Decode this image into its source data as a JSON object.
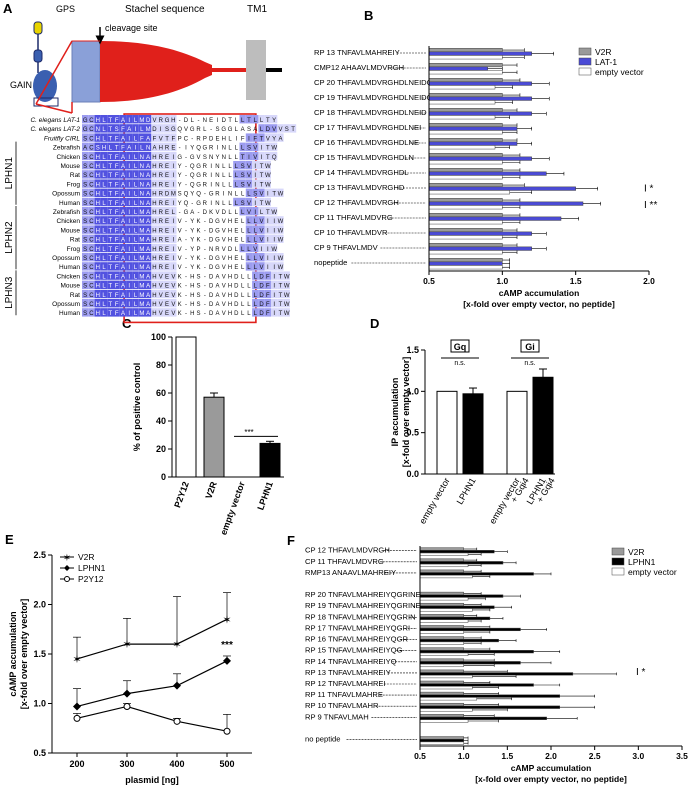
{
  "panels": {
    "A": "A",
    "B": "B",
    "C": "C",
    "D": "D",
    "E": "E",
    "F": "F"
  },
  "panelA": {
    "top_labels": [
      "GPS",
      "Stachel sequence",
      "TM1"
    ],
    "gain_label": "GAIN",
    "cleavage_label": "cleavage site",
    "species": [
      "C. elegans LAT-1",
      "C. elegans LAT-2",
      "Fruitfly CIRL",
      "Zebrafish",
      "Chicken",
      "Mouse",
      "Rat",
      "Frog",
      "Opossum",
      "Human",
      "Zebrafish",
      "Chicken",
      "Mouse",
      "Rat",
      "Frog",
      "Opossum",
      "Human",
      "Chicken",
      "Mouse",
      "Rat",
      "Opossum",
      "Human"
    ],
    "sequences": [
      "GCHLTFAILMDVRGH-DL-NEIDTLLTLLTY",
      "GCNLTSFAILMDISGQVGRL-SGGLASALDVVST",
      "SCHLTFAILFAFVTFPC-RPDEHLIFIFTVYA",
      "ACSHLTFAILNAHRE-IYQGRINLLLSVITW",
      "SCHLTFAILNAHREIG-GVSNYNLLTIVITQ",
      "SCHLTFAILNAHREIY-QGRINLLLSVITW",
      "SCHLTFAILNAHREIY-QGRINLLLSVITW",
      "SCHLTFAILNAHREIY-QGRINLLLSVITW",
      "SCHLTFAILNAHRDMSQYQ-GRINLLLSVITW",
      "SCHLTFAILNAHREIYQ-GRINLLLSVITW",
      "SCHLTFAILMAHREL-GA-DKVDLLLVILTW",
      "SCHLTFAILMAHREIV-YK-DGVHELLLVIIW",
      "SCHLTFAILMAHREIV-YK-DGVHELLLVIIW",
      "SCHLTFAILMAHREIA-YK-DGVHELLLVIIW",
      "SCHLTFAILMAHREIV-YP-NRVDLLLVIIW",
      "SCHLTFAILMAHREIV-YK-DGVHELLLVIIW",
      "SCHLTFAILMAHREIV-YK-DGVHELLLVIIW",
      "SCHLTFAILMAHVEVK-HS-DAVHDLLLDFITW",
      "SCHLTFAILMAHVEVK-HS-DAVHDLLLDFITW",
      "SCHLTFAILMAHVEVK-HS-DAVHDLLLDFITW",
      "SCHLTFAILMAHVEVK-HS-DAVHDLLLDFITW",
      "SCHLTFAILMAHVEVK-HS-DAVHDLLLDFITW"
    ],
    "groups": [
      "LPHN1",
      "LPHN2",
      "LPHN3"
    ]
  },
  "colors": {
    "gray": "#9a9a9a",
    "blue": "#4b4bd6",
    "black": "#000000",
    "white": "#ffffff",
    "red": "#e0201b",
    "rectblue": "#8aa0d8",
    "align_hi": "#5252e0",
    "align_mid": "#9c9cf0",
    "align_lo": "#d7d7fa"
  },
  "chart_data": [
    {
      "panel": "B",
      "type": "bar",
      "orientation": "horizontal",
      "categories": [
        "RP 13  TNFAVLMAHREIY",
        "CMP12 AHAAVLMDVRGH",
        "CP 20  THFAVLMDVRGHDLNEIDQT",
        "CP 19  THFAVLMDVRGHDLNEIDQ",
        "CP 18  THFAVLMDVRGHDLNEID",
        "CP 17  THFAVLMDVRGHDLNEI",
        "CP 16  THFAVLMDVRGHDLNE",
        "CP 15  THFAVLMDVRGHDLN",
        "CP 14  THFAVLMDVRGHDL",
        "CP 13  THFAVLMDVRGHD",
        "CP 12  THFAVLMDVRGH",
        "CP 11  THFAVLMDVRG",
        "CP 10  THFAVLMDVR",
        "CP 9   THFAVLMDV",
        "nopeptide"
      ],
      "series": [
        {
          "name": "V2R",
          "values": [
            1.0,
            1.0,
            1.0,
            1.0,
            1.0,
            1.0,
            1.0,
            1.0,
            1.0,
            1.0,
            1.0,
            1.0,
            1.0,
            1.0,
            1.0
          ]
        },
        {
          "name": "LAT-1",
          "values": [
            1.2,
            0.9,
            1.2,
            1.2,
            1.2,
            1.1,
            1.1,
            1.2,
            1.3,
            1.5,
            1.55,
            1.4,
            1.2,
            1.2,
            1.0
          ]
        },
        {
          "name": "empty vector",
          "values": [
            1.0,
            1.0,
            0.95,
            0.95,
            0.95,
            1.0,
            0.95,
            1.0,
            1.0,
            1.05,
            1.0,
            1.0,
            1.0,
            1.0,
            1.0
          ]
        }
      ],
      "errors": [
        0.15,
        0.1,
        0.12,
        0.12,
        0.1,
        0.1,
        0.1,
        0.12,
        0.12,
        0.15,
        0.12,
        0.12,
        0.1,
        0.1,
        0.05
      ],
      "xlim": [
        0.5,
        2.0
      ],
      "xticks": [
        0.5,
        1.0,
        1.5,
        2.0
      ],
      "xtick_labels": [
        "0.5",
        "1.0",
        "1.5",
        "2.0"
      ],
      "xlabel": "cAMP accumulation",
      "xlabel2": "[x-fold over empty vector, no peptide]",
      "annotations": [
        "*",
        "**"
      ],
      "legend": "top-right"
    },
    {
      "panel": "C",
      "type": "bar",
      "categories": [
        "P2Y12",
        "V2R",
        "empty vector",
        "LPHN1"
      ],
      "values": [
        100,
        57,
        0,
        24
      ],
      "errors": [
        0,
        3,
        0,
        1.5
      ],
      "ylim": [
        0,
        100
      ],
      "yticks": [
        0,
        20,
        40,
        60,
        80,
        100
      ],
      "ylabel": "% of positive control",
      "annotation": "***"
    },
    {
      "panel": "D",
      "type": "bar",
      "categories": [
        "empty vector",
        "LPHN1",
        "empty vector + Gqi4",
        "LPHN1 + Gqi4"
      ],
      "values": [
        1.0,
        0.97,
        1.0,
        1.17
      ],
      "errors": [
        0,
        0.07,
        0,
        0.1
      ],
      "ylim": [
        0,
        1.5
      ],
      "yticks": [
        0.0,
        0.5,
        1.0,
        1.5
      ],
      "ytick_labels": [
        "0.0",
        "0.5",
        "1.0",
        "1.5"
      ],
      "ylabel": "IP accumulation",
      "ylabel2": "[x-fold over empty vector]",
      "group_labels": [
        "Gq",
        "Gi"
      ],
      "ns_label": "n.s."
    },
    {
      "panel": "E",
      "type": "line",
      "x": [
        200,
        300,
        400,
        500
      ],
      "xticks": [
        200,
        300,
        400,
        500
      ],
      "series": [
        {
          "name": "V2R",
          "values": [
            1.45,
            1.6,
            1.6,
            1.85
          ],
          "errors": [
            0.22,
            0.26,
            0.48,
            0.27
          ]
        },
        {
          "name": "LPHN1",
          "values": [
            0.97,
            1.1,
            1.18,
            1.43
          ],
          "errors": [
            0.18,
            0.13,
            0.12,
            0.05
          ]
        },
        {
          "name": "P2Y12",
          "values": [
            0.85,
            0.97,
            0.82,
            0.72
          ],
          "errors": [
            0.05,
            0.03,
            0.03,
            0.17
          ]
        }
      ],
      "xlim": [
        150,
        550
      ],
      "ylim": [
        0.5,
        2.5
      ],
      "yticks": [
        0.5,
        1.0,
        1.5,
        2.0,
        2.5
      ],
      "ytick_labels": [
        "0.5",
        "1.0",
        "1.5",
        "2.0",
        "2.5"
      ],
      "xlabel": "plasmid [ng]",
      "ylabel": "cAMP accumulation",
      "ylabel2": "[x-fold over empty vector]",
      "annotation": "***",
      "legend": "top-left"
    },
    {
      "panel": "F",
      "type": "bar",
      "orientation": "horizontal",
      "categories": [
        "CP 12  THFAVLMDVRGH",
        "CP 11  THFAVLMDVRG",
        "RMP13 ANAAVLMAHREIY",
        "",
        "RP 20  TNFAVLMAHREIYQGRINEL",
        "RP 19  TNFAVLMAHREIYQGRINE",
        "RP 18  TNFAVLMAHREIYQGRIN",
        "RP 17  TNFAVLMAHREIYQGRI",
        "RP 16  TNFAVLMAHREIYQGR",
        "RP 15  TNFAVLMAHREIYQG",
        "RP 14  TNFAVLMAHREIYQ",
        "RP 13  TNFAVLMAHREIY",
        "RP 12  TNFAVLMAHREI",
        "RP 11  TNFAVLMAHRE",
        "RP 10  TNFAVLMAHR",
        "RP 9   TNFAVLMAH",
        "",
        "no peptide"
      ],
      "series": [
        {
          "name": "V2R",
          "values": [
            1.0,
            1.0,
            1.0,
            null,
            1.0,
            1.0,
            1.0,
            1.0,
            1.0,
            1.0,
            1.0,
            1.0,
            1.0,
            1.0,
            1.0,
            1.0,
            null,
            1.0
          ]
        },
        {
          "name": "LPHN1",
          "values": [
            1.35,
            1.45,
            1.8,
            null,
            1.45,
            1.35,
            1.3,
            1.65,
            1.4,
            1.8,
            1.65,
            2.25,
            1.8,
            2.1,
            2.1,
            1.95,
            null,
            1.0
          ]
        },
        {
          "name": "empty vector",
          "values": [
            1.05,
            1.05,
            1.1,
            null,
            1.05,
            1.1,
            1.05,
            1.0,
            1.0,
            1.05,
            1.0,
            1.1,
            1.1,
            1.15,
            1.1,
            1.05,
            null,
            1.0
          ]
        }
      ],
      "errors": [
        0.15,
        0.15,
        0.2,
        null,
        0.2,
        0.2,
        0.15,
        0.3,
        0.2,
        0.3,
        0.35,
        0.5,
        0.3,
        0.4,
        0.4,
        0.35,
        null,
        0.05
      ],
      "xlim": [
        0.5,
        3.5
      ],
      "xticks": [
        0.5,
        1.0,
        1.5,
        2.0,
        2.5,
        3.0,
        3.5
      ],
      "xtick_labels": [
        "0.5",
        "1.0",
        "1.5",
        "2.0",
        "2.5",
        "3.0",
        "3.5"
      ],
      "xlabel": "cAMP accumulation",
      "xlabel2": "[x-fold over empty vector, no peptide]",
      "annotation": "*",
      "legend": "top-right"
    }
  ]
}
